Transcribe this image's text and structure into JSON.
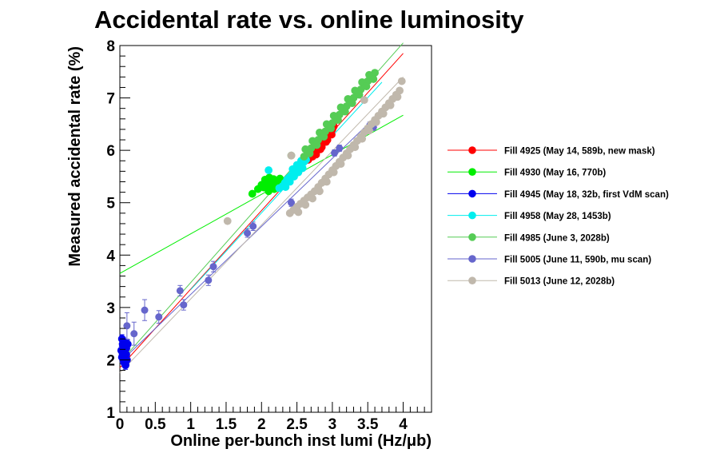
{
  "chart_data": {
    "type": "scatter",
    "title": "Accidental rate vs. online luminosity",
    "xlabel": "Online per-bunch inst lumi (Hz/μb)",
    "ylabel": "Measured accidental rate (%)",
    "xlim": [
      0,
      4.4
    ],
    "ylim": [
      1,
      8
    ],
    "xticks": [
      {
        "v": 0,
        "label": "0"
      },
      {
        "v": 0.5,
        "label": "0.5"
      },
      {
        "v": 1,
        "label": "1"
      },
      {
        "v": 1.5,
        "label": "1.5"
      },
      {
        "v": 2,
        "label": "2"
      },
      {
        "v": 2.5,
        "label": "2.5"
      },
      {
        "v": 3,
        "label": "3"
      },
      {
        "v": 3.5,
        "label": "3.5"
      },
      {
        "v": 4,
        "label": "4"
      }
    ],
    "yticks": [
      {
        "v": 1,
        "label": "1"
      },
      {
        "v": 2,
        "label": "2"
      },
      {
        "v": 3,
        "label": "3"
      },
      {
        "v": 4,
        "label": "4"
      },
      {
        "v": 5,
        "label": "5"
      },
      {
        "v": 6,
        "label": "6"
      },
      {
        "v": 7,
        "label": "7"
      },
      {
        "v": 8,
        "label": "8"
      }
    ],
    "legend_position": "right",
    "grid": false,
    "series": [
      {
        "name": "Fill 4925 (May 14, 589b, new mask)",
        "color": "#ff0000",
        "marker_size": 5.5,
        "errorbars": false,
        "fit": {
          "x0": 0,
          "y0": 1.85,
          "x1": 4.0,
          "y1": 7.85
        },
        "points": [
          [
            2.66,
            5.82
          ],
          [
            2.68,
            5.86
          ],
          [
            2.7,
            5.9
          ],
          [
            2.72,
            5.88
          ],
          [
            2.74,
            5.94
          ],
          [
            2.76,
            5.98
          ],
          [
            2.78,
            6.02
          ],
          [
            2.8,
            6.06
          ],
          [
            2.82,
            6.08
          ],
          [
            2.84,
            6.12
          ],
          [
            2.86,
            6.16
          ],
          [
            2.88,
            6.18
          ],
          [
            2.9,
            6.22
          ],
          [
            2.92,
            6.26
          ],
          [
            2.94,
            6.28
          ],
          [
            2.96,
            6.32
          ],
          [
            2.98,
            6.36
          ],
          [
            3.0,
            6.4
          ],
          [
            3.02,
            6.46
          ],
          [
            3.05,
            6.58
          ],
          [
            2.71,
            5.96
          ],
          [
            2.75,
            5.92
          ],
          [
            2.79,
            6.1
          ],
          [
            2.83,
            6.02
          ],
          [
            2.87,
            6.22
          ],
          [
            2.91,
            6.16
          ],
          [
            2.95,
            6.36
          ],
          [
            2.99,
            6.3
          ],
          [
            2.67,
            5.9
          ],
          [
            2.73,
            6.0
          ],
          [
            2.77,
            5.92
          ],
          [
            2.81,
            6.14
          ],
          [
            2.85,
            6.06
          ],
          [
            2.89,
            6.26
          ],
          [
            2.93,
            6.2
          ],
          [
            2.97,
            6.4
          ]
        ]
      },
      {
        "name": "Fill 4930 (May 16, 770b)",
        "color": "#00ee00",
        "marker_size": 5.5,
        "errorbars": false,
        "fit": {
          "x0": 0,
          "y0": 3.65,
          "x1": 4.0,
          "y1": 6.67
        },
        "points": [
          [
            1.87,
            5.17
          ],
          [
            1.95,
            5.26
          ],
          [
            2.0,
            5.34
          ],
          [
            2.03,
            5.29
          ],
          [
            2.06,
            5.36
          ],
          [
            2.08,
            5.4
          ],
          [
            2.1,
            5.22
          ],
          [
            2.12,
            5.3
          ],
          [
            2.14,
            5.34
          ],
          [
            2.16,
            5.38
          ],
          [
            2.18,
            5.26
          ],
          [
            2.2,
            5.33
          ],
          [
            2.22,
            5.38
          ],
          [
            2.24,
            5.42
          ],
          [
            2.26,
            5.46
          ],
          [
            2.28,
            5.4
          ],
          [
            2.05,
            5.44
          ],
          [
            2.11,
            5.48
          ],
          [
            2.17,
            5.45
          ],
          [
            2.23,
            5.3
          ]
        ]
      },
      {
        "name": "Fill 4945 (May 18, 32b, first VdM scan)",
        "color": "#0000ee",
        "marker_size": 5.5,
        "errorbars": true,
        "fit": null,
        "points": [
          [
            0.03,
            2.4,
            0.08
          ],
          [
            0.04,
            2.3,
            0.08
          ],
          [
            0.05,
            2.2,
            0.08
          ],
          [
            0.06,
            2.1,
            0.08
          ],
          [
            0.07,
            2.0,
            0.08
          ],
          [
            0.08,
            1.9,
            0.08
          ],
          [
            0.05,
            2.35,
            0.08
          ],
          [
            0.06,
            2.25,
            0.08
          ],
          [
            0.07,
            2.15,
            0.08
          ],
          [
            0.08,
            2.05,
            0.08
          ],
          [
            0.04,
            2.12,
            0.08
          ],
          [
            0.09,
            2.22,
            0.08
          ],
          [
            0.1,
            2.0,
            0.08
          ],
          [
            0.03,
            2.05,
            0.08
          ],
          [
            0.06,
            1.95,
            0.08
          ],
          [
            0.09,
            2.1,
            0.08
          ],
          [
            0.02,
            2.18,
            0.08
          ],
          [
            0.11,
            2.3,
            0.08
          ]
        ]
      },
      {
        "name": "Fill 4958 (May 28, 1453b)",
        "color": "#00eeee",
        "marker_size": 5.5,
        "errorbars": false,
        "fit": {
          "x0": 1.0,
          "y0": 3.34,
          "x1": 3.7,
          "y1": 7.3
        },
        "points": [
          [
            2.1,
            5.62
          ],
          [
            2.25,
            5.28
          ],
          [
            2.3,
            5.32
          ],
          [
            2.33,
            5.38
          ],
          [
            2.36,
            5.44
          ],
          [
            2.39,
            5.48
          ],
          [
            2.42,
            5.52
          ],
          [
            2.45,
            5.56
          ],
          [
            2.48,
            5.62
          ],
          [
            2.51,
            5.66
          ],
          [
            2.54,
            5.7
          ],
          [
            2.57,
            5.74
          ],
          [
            2.6,
            5.78
          ],
          [
            2.63,
            5.82
          ],
          [
            2.34,
            5.3
          ],
          [
            2.4,
            5.4
          ],
          [
            2.46,
            5.5
          ],
          [
            2.52,
            5.58
          ],
          [
            2.58,
            5.66
          ],
          [
            2.44,
            5.64
          ],
          [
            2.5,
            5.72
          ],
          [
            2.56,
            5.8
          ]
        ]
      },
      {
        "name": "Fill 4985 (June 3, 2028b)",
        "color": "#55cc55",
        "marker_size": 5.5,
        "errorbars": false,
        "fit": {
          "x0": 0,
          "y0": 1.95,
          "x1": 4.0,
          "y1": 8.05
        },
        "points": [
          [
            2.42,
            5.9
          ],
          [
            2.6,
            5.88
          ],
          [
            2.65,
            5.96
          ],
          [
            2.7,
            6.04
          ],
          [
            2.75,
            6.12
          ],
          [
            2.8,
            6.2
          ],
          [
            2.85,
            6.28
          ],
          [
            2.9,
            6.36
          ],
          [
            2.95,
            6.44
          ],
          [
            3.0,
            6.52
          ],
          [
            3.05,
            6.6
          ],
          [
            3.1,
            6.68
          ],
          [
            3.15,
            6.76
          ],
          [
            3.2,
            6.84
          ],
          [
            3.25,
            6.92
          ],
          [
            3.3,
            7.0
          ],
          [
            3.35,
            7.08
          ],
          [
            3.4,
            7.16
          ],
          [
            3.45,
            7.24
          ],
          [
            3.5,
            7.32
          ],
          [
            3.55,
            7.4
          ],
          [
            3.6,
            7.48
          ],
          [
            2.62,
            6.02
          ],
          [
            2.72,
            6.18
          ],
          [
            2.82,
            6.34
          ],
          [
            2.92,
            6.5
          ],
          [
            3.02,
            6.66
          ],
          [
            3.12,
            6.82
          ],
          [
            3.22,
            6.98
          ],
          [
            3.32,
            7.14
          ],
          [
            3.42,
            7.3
          ],
          [
            3.52,
            7.44
          ],
          [
            2.68,
            5.94
          ],
          [
            2.78,
            6.1
          ],
          [
            2.88,
            6.26
          ],
          [
            2.98,
            6.42
          ],
          [
            3.08,
            6.58
          ],
          [
            3.18,
            6.74
          ],
          [
            3.28,
            6.9
          ],
          [
            3.38,
            7.06
          ],
          [
            3.48,
            7.22
          ],
          [
            3.58,
            7.36
          ]
        ]
      },
      {
        "name": "Fill 5005 (June 11, 590b, mu scan)",
        "color": "#6666cc",
        "marker_size": 5.0,
        "errorbars": true,
        "fit": {
          "x0": 0,
          "y0": 1.95,
          "x1": 3.95,
          "y1": 7.08
        },
        "points": [
          [
            0.1,
            2.65,
            0.25
          ],
          [
            0.2,
            2.5,
            0.22
          ],
          [
            0.35,
            2.95,
            0.2
          ],
          [
            0.55,
            2.82,
            0.12
          ],
          [
            0.85,
            3.32,
            0.1
          ],
          [
            0.9,
            3.05,
            0.1
          ],
          [
            1.25,
            3.52,
            0.1
          ],
          [
            1.32,
            3.78,
            0.1
          ],
          [
            1.8,
            4.42,
            0.08
          ],
          [
            1.88,
            4.55,
            0.08
          ],
          [
            2.42,
            5.0,
            0.07
          ],
          [
            3.03,
            5.95,
            0.06
          ],
          [
            3.1,
            6.04,
            0.06
          ],
          [
            3.53,
            6.48,
            0.06
          ],
          [
            3.58,
            6.44,
            0.06
          ],
          [
            3.7,
            6.7,
            0.06
          ]
        ]
      },
      {
        "name": "Fill 5013 (June 12, 2028b)",
        "color": "#c0b8ac",
        "marker_size": 5.5,
        "errorbars": false,
        "fit": {
          "x0": 0,
          "y0": 1.75,
          "x1": 4.0,
          "y1": 7.4
        },
        "points": [
          [
            1.52,
            4.65
          ],
          [
            2.4,
            4.8
          ],
          [
            2.45,
            4.86
          ],
          [
            2.5,
            4.92
          ],
          [
            2.55,
            4.98
          ],
          [
            2.6,
            5.04
          ],
          [
            2.65,
            5.1
          ],
          [
            2.7,
            5.16
          ],
          [
            2.75,
            5.22
          ],
          [
            2.8,
            5.3
          ],
          [
            2.85,
            5.38
          ],
          [
            2.9,
            5.46
          ],
          [
            2.95,
            5.54
          ],
          [
            3.0,
            5.62
          ],
          [
            3.05,
            5.7
          ],
          [
            3.1,
            5.78
          ],
          [
            3.15,
            5.86
          ],
          [
            3.2,
            5.94
          ],
          [
            3.25,
            6.02
          ],
          [
            3.3,
            6.1
          ],
          [
            3.35,
            6.18
          ],
          [
            3.4,
            6.26
          ],
          [
            3.45,
            6.34
          ],
          [
            3.5,
            6.42
          ],
          [
            3.55,
            6.5
          ],
          [
            3.6,
            6.58
          ],
          [
            3.65,
            6.66
          ],
          [
            3.7,
            6.74
          ],
          [
            3.75,
            6.82
          ],
          [
            3.8,
            6.9
          ],
          [
            3.85,
            6.98
          ],
          [
            3.9,
            7.06
          ],
          [
            3.95,
            7.14
          ],
          [
            3.98,
            7.32
          ],
          [
            3.45,
            6.96
          ],
          [
            2.42,
            5.9
          ],
          [
            2.52,
            4.82
          ],
          [
            2.62,
            4.96
          ],
          [
            2.72,
            5.08
          ],
          [
            2.82,
            5.22
          ],
          [
            2.92,
            5.4
          ],
          [
            3.02,
            5.58
          ],
          [
            3.12,
            5.74
          ],
          [
            3.22,
            5.9
          ],
          [
            3.32,
            6.06
          ],
          [
            3.42,
            6.22
          ],
          [
            3.52,
            6.38
          ],
          [
            3.62,
            6.54
          ],
          [
            3.72,
            6.7
          ],
          [
            3.82,
            6.86
          ],
          [
            3.92,
            7.02
          ]
        ]
      }
    ]
  }
}
